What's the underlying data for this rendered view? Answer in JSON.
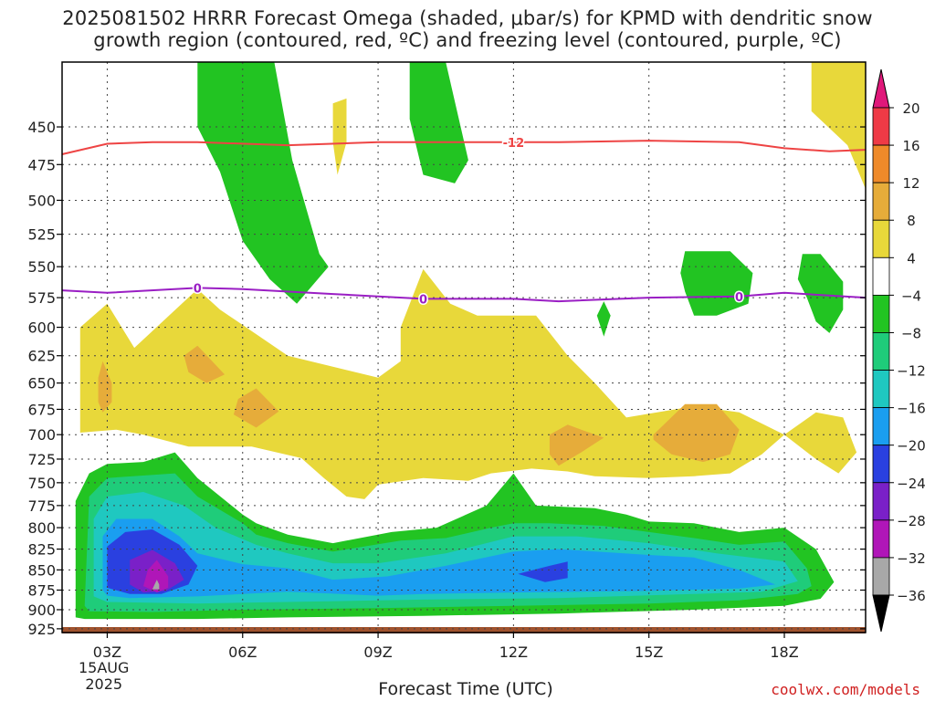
{
  "title_line1": "2025081502 HRRR Forecast Omega (shaded, μbar/s) for KPMD with dendritic snow",
  "title_line2": "growth region (contoured, red, ºC) and freezing level (contoured, purple, ºC)",
  "credit": "coolwx.com/models",
  "chart_data": {
    "type": "contour",
    "xlabel": "Forecast Time (UTC)",
    "x_ticks": [
      "03Z",
      "06Z",
      "09Z",
      "12Z",
      "15Z",
      "18Z"
    ],
    "x_tick_hours": [
      3,
      6,
      9,
      12,
      15,
      18
    ],
    "x_date_label": [
      "15AUG",
      "2025"
    ],
    "xlim": [
      2,
      19.8
    ],
    "ylabel": "",
    "y_ticks": [
      450,
      475,
      500,
      525,
      550,
      575,
      600,
      625,
      650,
      675,
      700,
      725,
      750,
      775,
      800,
      825,
      850,
      875,
      900,
      925
    ],
    "ylim": [
      410,
      930
    ],
    "y_scale": "log-pressure",
    "grid": true,
    "colorbar": {
      "labels": [
        "20",
        "16",
        "12",
        "8",
        "4",
        "−4",
        "−8",
        "−12",
        "−16",
        "−20",
        "−24",
        "−28",
        "−32",
        "−36"
      ],
      "colors": [
        "#ee3a46",
        "#ee8a2a",
        "#e6ac3a",
        "#e8d83a",
        "#ffffff",
        "#22c422",
        "#1fcc7a",
        "#1fc8c0",
        "#1a9ef0",
        "#2a40e0",
        "#7a20c8",
        "#b016b8",
        "#a8a8a8"
      ],
      "top_arrow_color": "#e0187a",
      "bottom_arrow_color": "#000000"
    },
    "contours": [
      {
        "label": "-12",
        "color": "#ee4444",
        "points": [
          [
            2,
            468
          ],
          [
            3,
            461
          ],
          [
            4,
            460
          ],
          [
            5,
            460
          ],
          [
            7,
            462
          ],
          [
            9,
            460
          ],
          [
            11,
            460
          ],
          [
            13,
            460
          ],
          [
            15,
            459
          ],
          [
            17,
            460
          ],
          [
            18,
            464
          ],
          [
            19,
            466
          ],
          [
            19.8,
            465
          ]
        ]
      },
      {
        "label": "0",
        "color": "#9a1ec4",
        "points": [
          [
            2,
            569
          ],
          [
            3,
            571
          ],
          [
            5,
            567
          ],
          [
            6,
            568
          ],
          [
            8,
            572
          ],
          [
            10,
            576
          ],
          [
            12,
            576
          ],
          [
            13,
            578
          ],
          [
            15,
            575
          ],
          [
            17,
            574
          ],
          [
            18,
            571
          ],
          [
            19.8,
            575
          ]
        ]
      }
    ],
    "label_positions": [
      [
        12,
        460
      ],
      [
        5,
        567
      ],
      [
        10,
        576
      ],
      [
        17,
        574
      ]
    ]
  }
}
